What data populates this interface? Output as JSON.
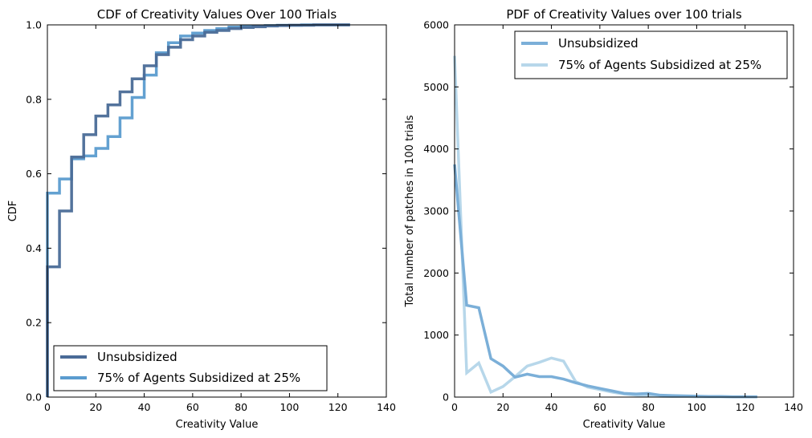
{
  "chart_data": [
    {
      "type": "line",
      "subtype": "step",
      "title": "CDF of Creativity Values Over 100 Trials",
      "xlabel": "Creativity Value",
      "ylabel": "CDF",
      "xlim": [
        0,
        140
      ],
      "ylim": [
        0,
        1.0
      ],
      "xticks": [
        "0",
        "20",
        "40",
        "60",
        "80",
        "100",
        "120",
        "140"
      ],
      "yticks": [
        "0.0",
        "0.2",
        "0.4",
        "0.6",
        "0.8",
        "1.0"
      ],
      "legend_position": "lower-left",
      "series": [
        {
          "name": "Unsubsidized",
          "color": "#4a6b97",
          "x": [
            0,
            5,
            10,
            15,
            20,
            25,
            30,
            35,
            40,
            45,
            50,
            55,
            60,
            65,
            70,
            75,
            80,
            85,
            90,
            95,
            100,
            105,
            110,
            115,
            120,
            125
          ],
          "y": [
            0.35,
            0.5,
            0.645,
            0.705,
            0.755,
            0.785,
            0.82,
            0.855,
            0.89,
            0.92,
            0.94,
            0.96,
            0.97,
            0.98,
            0.985,
            0.99,
            0.993,
            0.995,
            0.997,
            0.998,
            0.999,
            0.999,
            1.0,
            1.0,
            1.0,
            1.0
          ]
        },
        {
          "name": "75% of Agents Subsidized at 25%",
          "color": "#5b9ccf",
          "x": [
            0,
            5,
            10,
            15,
            20,
            25,
            30,
            35,
            40,
            45,
            50,
            55,
            60,
            65,
            70,
            75,
            80,
            85,
            90,
            95,
            100,
            105,
            110,
            115,
            120,
            125
          ],
          "y": [
            0.548,
            0.586,
            0.64,
            0.648,
            0.668,
            0.7,
            0.75,
            0.805,
            0.865,
            0.925,
            0.952,
            0.97,
            0.978,
            0.985,
            0.99,
            0.994,
            0.996,
            0.997,
            0.998,
            0.999,
            0.999,
            1.0,
            1.0,
            1.0,
            1.0,
            1.0
          ]
        }
      ]
    },
    {
      "type": "line",
      "title": "PDF of Creativity Values over 100 trials",
      "xlabel": "Creativity Value",
      "ylabel": "Total number of patches in 100 trials",
      "xlim": [
        0,
        140
      ],
      "ylim": [
        0,
        6000
      ],
      "xticks": [
        "0",
        "20",
        "40",
        "60",
        "80",
        "100",
        "120",
        "140"
      ],
      "yticks": [
        "0",
        "1000",
        "2000",
        "3000",
        "4000",
        "5000",
        "6000"
      ],
      "legend_position": "top-right",
      "series": [
        {
          "name": "Unsubsidized",
          "color": "#7bafd8",
          "x": [
            0,
            5,
            10,
            15,
            20,
            25,
            30,
            35,
            40,
            45,
            50,
            55,
            60,
            65,
            70,
            75,
            80,
            85,
            90,
            95,
            100,
            105,
            110,
            115,
            120,
            125
          ],
          "y": [
            3750,
            1480,
            1440,
            620,
            500,
            320,
            370,
            330,
            330,
            290,
            230,
            180,
            140,
            100,
            60,
            50,
            60,
            30,
            25,
            20,
            15,
            10,
            10,
            5,
            5,
            5
          ]
        },
        {
          "name": "75% of Agents Subsidized at 25%",
          "color": "#b7d7ea",
          "x": [
            0,
            5,
            10,
            15,
            20,
            25,
            30,
            35,
            40,
            45,
            50,
            55,
            60,
            65,
            70,
            75,
            80,
            85,
            90,
            95,
            100,
            105,
            110,
            115,
            120,
            125
          ],
          "y": [
            5500,
            390,
            550,
            80,
            170,
            330,
            500,
            560,
            630,
            580,
            250,
            160,
            120,
            80,
            50,
            30,
            20,
            15,
            10,
            10,
            5,
            5,
            5,
            3,
            3,
            3
          ]
        }
      ]
    }
  ]
}
